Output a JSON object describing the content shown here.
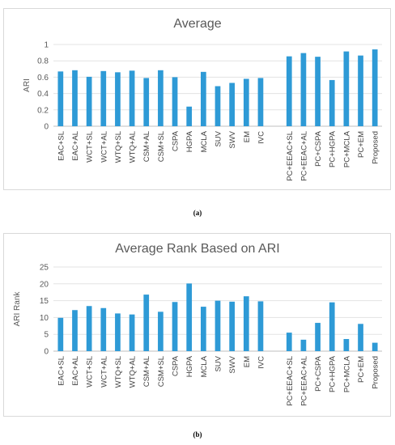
{
  "chart_data": [
    {
      "type": "bar",
      "title": "Average",
      "ylabel": "ARI",
      "xlabel": "",
      "ylim": [
        0,
        1
      ],
      "yticks": [
        "0",
        "0.2",
        "0.4",
        "0.6",
        "0.8",
        "1"
      ],
      "grid": true,
      "color": "#2E9AD6",
      "categories": [
        "EAC+SL",
        "EAC+AL",
        "WCT+SL",
        "WCT+AL",
        "WTQ+SL",
        "WTQ+AL",
        "CSM+AL",
        "CSM+SL",
        "CSPA",
        "HGPA",
        "MCLA",
        "SUV",
        "SWV",
        "EM",
        "IVC",
        "",
        "PC+EEAC+SL",
        "PC+EEAC+AL",
        "PC+CSPA",
        "PC+HGPA",
        "PC+MCLA",
        "PC+EM",
        "Proposed"
      ],
      "values": [
        0.67,
        0.685,
        0.605,
        0.675,
        0.66,
        0.68,
        0.59,
        0.685,
        0.6,
        0.24,
        0.665,
        0.49,
        0.53,
        0.58,
        0.59,
        null,
        0.855,
        0.895,
        0.85,
        0.565,
        0.915,
        0.865,
        0.94
      ]
    },
    {
      "type": "bar",
      "title": "Average Rank Based on ARI",
      "ylabel": "ARI Rank",
      "xlabel": "",
      "ylim": [
        0,
        25
      ],
      "yticks": [
        "0",
        "5",
        "10",
        "15",
        "20",
        "25"
      ],
      "grid": true,
      "color": "#2E9AD6",
      "categories": [
        "EAC+SL",
        "EAC+AL",
        "WCT+SL",
        "WCT+AL",
        "WTQ+SL",
        "WTQ+AL",
        "CSM+AL",
        "CSM+SL",
        "CSPA",
        "HGPA",
        "MCLA",
        "SUV",
        "SWV",
        "EM",
        "IVC",
        "",
        "PC+EEAC+SL",
        "PC+EEAC+AL",
        "PC+CSPA",
        "PC+HGPA",
        "PC+MCLA",
        "PC+EM",
        "Proposed"
      ],
      "values": [
        9.9,
        12.2,
        13.4,
        12.8,
        11.2,
        10.9,
        16.8,
        11.7,
        14.6,
        20.1,
        13.2,
        15.0,
        14.7,
        16.3,
        14.8,
        null,
        5.5,
        3.4,
        8.4,
        14.5,
        3.6,
        8.1,
        2.5
      ]
    }
  ],
  "captions": [
    "(a)",
    "(b)"
  ]
}
